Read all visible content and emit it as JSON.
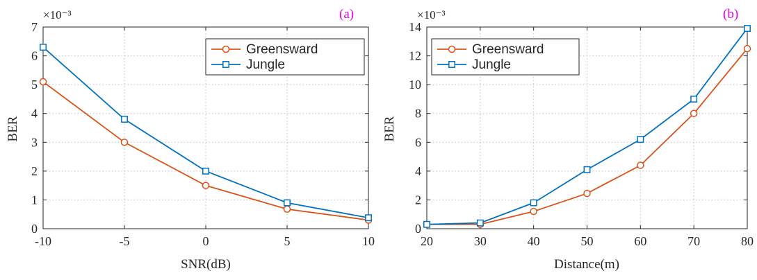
{
  "colors": {
    "greensward": "#D95319",
    "jungle": "#0072BD",
    "panel_label": "#E000E0",
    "axis": "#262626"
  },
  "chart_data": [
    {
      "type": "line",
      "panel_label": "(a)",
      "xlabel": "SNR(dB)",
      "ylabel": "BER",
      "exponent_label": "×10⁻³",
      "x": [
        -10,
        -5,
        0,
        5,
        10
      ],
      "xlim": [
        -10,
        10
      ],
      "ylim": [
        0,
        7
      ],
      "xticks": [
        -10,
        -5,
        0,
        5,
        10
      ],
      "yticks": [
        0,
        1,
        2,
        3,
        4,
        5,
        6,
        7
      ],
      "grid": true,
      "legend_position": "top-right",
      "series": [
        {
          "name": "Greensward",
          "marker": "circle",
          "color": "#D95319",
          "values": [
            5.1,
            3.0,
            1.5,
            0.68,
            0.3
          ]
        },
        {
          "name": "Jungle",
          "marker": "square",
          "color": "#0072BD",
          "values": [
            6.3,
            3.8,
            2.0,
            0.9,
            0.38
          ]
        }
      ]
    },
    {
      "type": "line",
      "panel_label": "(b)",
      "xlabel": "Distance(m)",
      "ylabel": "BER",
      "exponent_label": "×10⁻³",
      "x": [
        20,
        30,
        40,
        50,
        60,
        70,
        80
      ],
      "xlim": [
        20,
        80
      ],
      "ylim": [
        0,
        14
      ],
      "xticks": [
        20,
        30,
        40,
        50,
        60,
        70,
        80
      ],
      "yticks": [
        0,
        2,
        4,
        6,
        8,
        10,
        12,
        14
      ],
      "grid": true,
      "legend_position": "top-left",
      "series": [
        {
          "name": "Greensward",
          "marker": "circle",
          "color": "#D95319",
          "values": [
            0.3,
            0.3,
            1.2,
            2.45,
            4.4,
            8.0,
            12.5
          ]
        },
        {
          "name": "Jungle",
          "marker": "square",
          "color": "#0072BD",
          "values": [
            0.3,
            0.4,
            1.8,
            4.1,
            6.2,
            9.0,
            13.9
          ]
        }
      ]
    }
  ]
}
